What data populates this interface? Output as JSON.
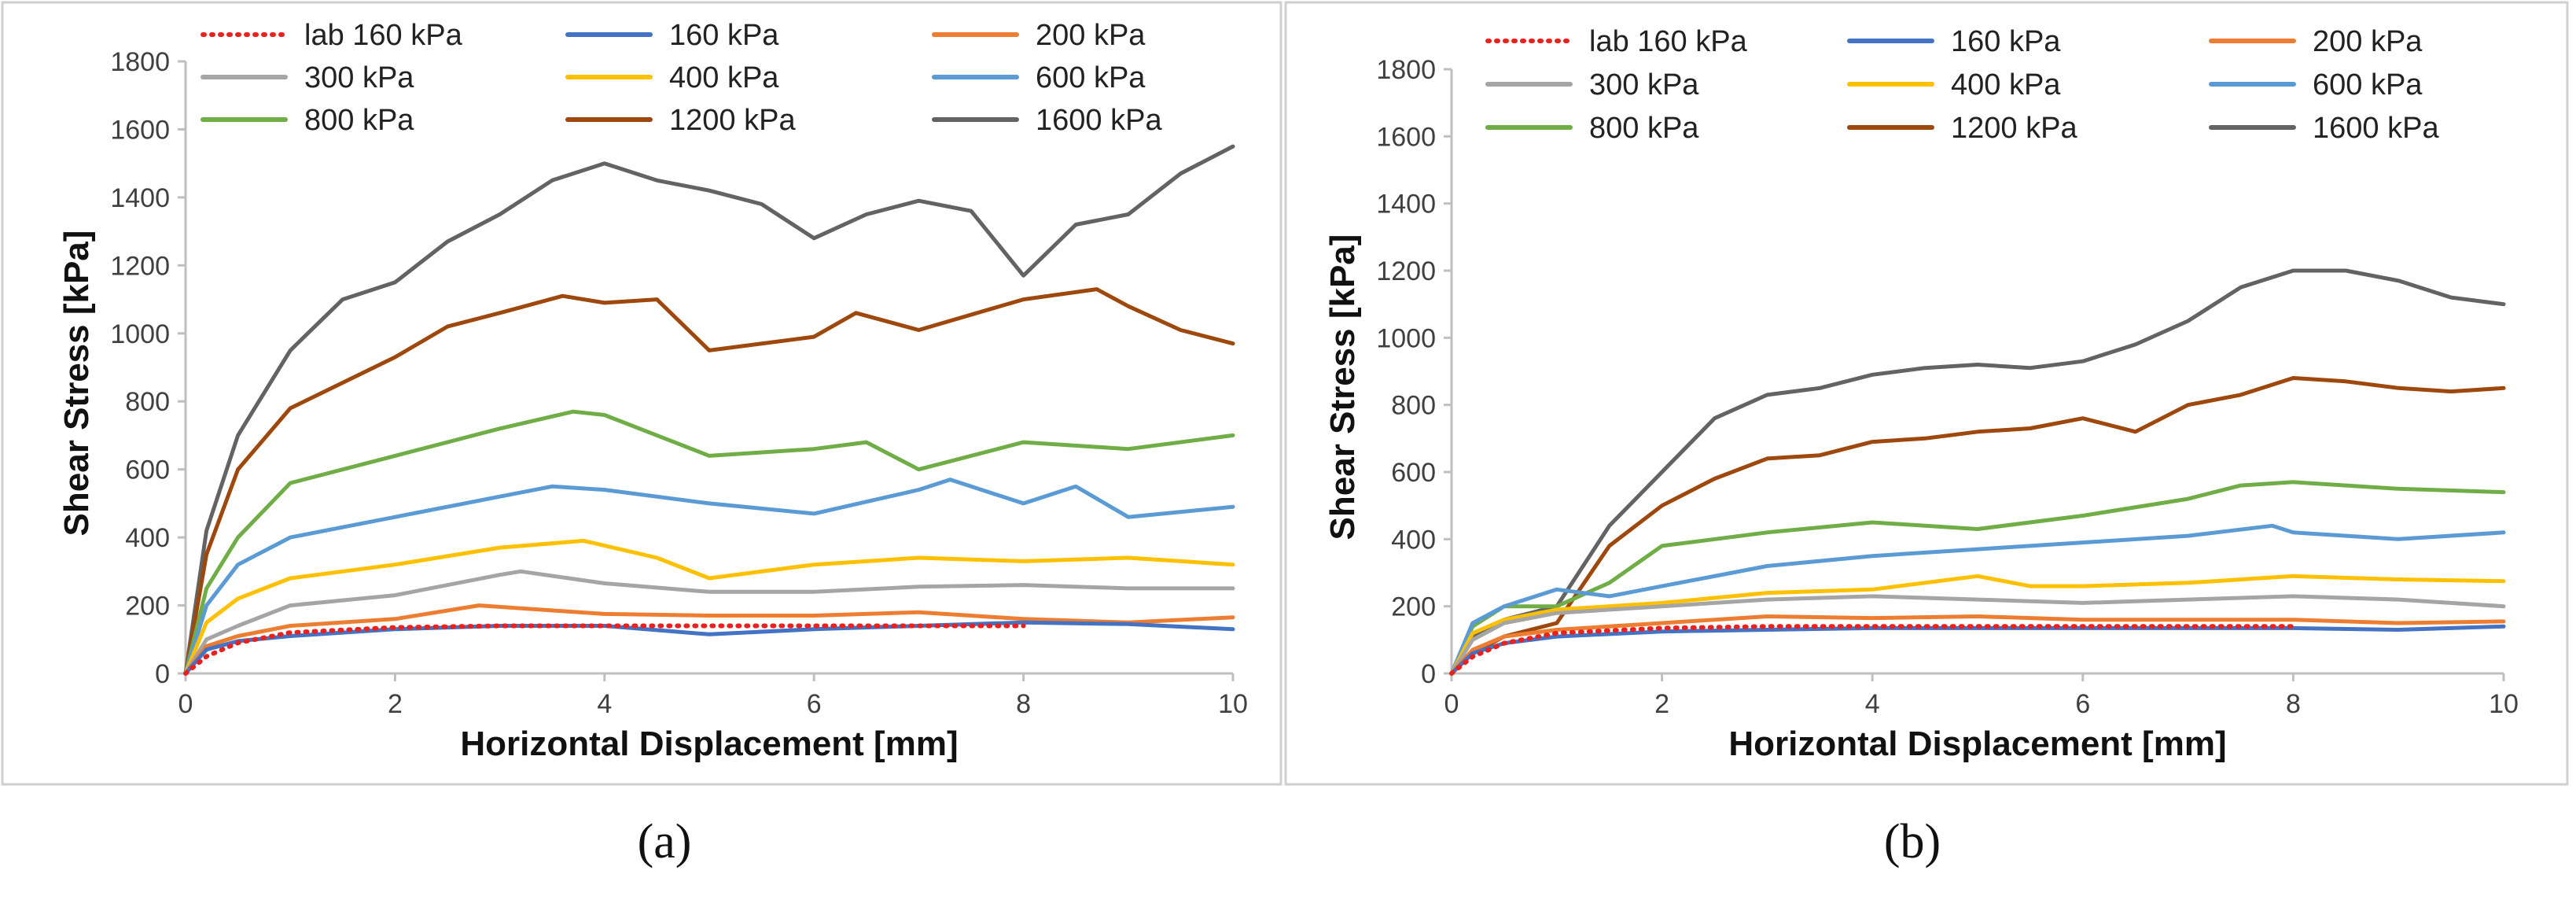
{
  "series_styles": [
    {
      "name": "lab 160 kPa",
      "color": "#e8221f",
      "dashed": true
    },
    {
      "name": "160 kPa",
      "color": "#4472c4",
      "dashed": false
    },
    {
      "name": "200 kPa",
      "color": "#ed7d31",
      "dashed": false
    },
    {
      "name": "300 kPa",
      "color": "#a5a5a5",
      "dashed": false
    },
    {
      "name": "400 kPa",
      "color": "#ffc000",
      "dashed": false
    },
    {
      "name": "600 kPa",
      "color": "#5b9bd5",
      "dashed": false
    },
    {
      "name": "800 kPa",
      "color": "#70ad47",
      "dashed": false
    },
    {
      "name": "1200 kPa",
      "color": "#9e480e",
      "dashed": false
    },
    {
      "name": "1600 kPa",
      "color": "#636363",
      "dashed": false
    }
  ],
  "chart_data": [
    {
      "type": "line",
      "caption": "(a)",
      "title": "",
      "xlabel": "Horizontal Displacement [mm]",
      "ylabel": "Shear Stress [kPa]",
      "xlim": [
        0,
        10
      ],
      "ylim": [
        0,
        1800
      ],
      "xticks": [
        "0",
        "2",
        "4",
        "6",
        "8",
        "10"
      ],
      "yticks": [
        "0",
        "200",
        "400",
        "600",
        "800",
        "1000",
        "1200",
        "1400",
        "1600",
        "1800"
      ],
      "legend": "top, inside, 3 columns",
      "series": [
        {
          "name": "lab 160 kPa",
          "x": [
            0,
            0.2,
            0.5,
            1,
            2,
            3,
            4,
            5,
            6,
            7,
            8
          ],
          "values": [
            0,
            50,
            90,
            120,
            135,
            140,
            140,
            140,
            140,
            140,
            140
          ]
        },
        {
          "name": "160 kPa",
          "x": [
            0,
            0.2,
            0.5,
            1,
            2,
            3,
            4,
            5,
            6,
            7,
            8,
            9,
            10
          ],
          "values": [
            0,
            70,
            95,
            110,
            130,
            140,
            140,
            115,
            130,
            140,
            150,
            145,
            130
          ]
        },
        {
          "name": "200 kPa",
          "x": [
            0,
            0.2,
            0.5,
            1,
            2,
            2.8,
            4,
            5,
            6,
            7,
            8,
            9,
            10
          ],
          "values": [
            0,
            80,
            110,
            140,
            160,
            200,
            175,
            170,
            170,
            180,
            160,
            150,
            165
          ]
        },
        {
          "name": "300 kPa",
          "x": [
            0,
            0.2,
            0.5,
            1,
            2,
            3,
            3.2,
            4,
            5,
            6,
            7,
            8,
            9,
            10
          ],
          "values": [
            0,
            100,
            140,
            200,
            230,
            290,
            300,
            265,
            240,
            240,
            255,
            260,
            250,
            250
          ]
        },
        {
          "name": "400 kPa",
          "x": [
            0,
            0.2,
            0.5,
            1,
            2,
            3,
            3.8,
            4.5,
            5,
            6,
            7,
            8,
            9,
            10
          ],
          "values": [
            0,
            150,
            220,
            280,
            320,
            370,
            390,
            340,
            280,
            320,
            340,
            330,
            340,
            320
          ]
        },
        {
          "name": "600 kPa",
          "x": [
            0,
            0.2,
            0.5,
            1,
            2,
            3,
            3.5,
            4,
            5,
            6,
            7,
            7.3,
            8,
            8.5,
            9,
            10
          ],
          "values": [
            0,
            200,
            320,
            400,
            460,
            520,
            550,
            540,
            500,
            470,
            540,
            570,
            500,
            550,
            460,
            490
          ]
        },
        {
          "name": "800 kPa",
          "x": [
            0,
            0.2,
            0.5,
            1,
            2,
            3,
            3.7,
            4,
            4.5,
            5,
            6,
            6.5,
            7,
            8,
            9,
            10
          ],
          "values": [
            0,
            250,
            400,
            560,
            640,
            720,
            770,
            760,
            700,
            640,
            660,
            680,
            600,
            680,
            660,
            700
          ]
        },
        {
          "name": "1200 kPa",
          "x": [
            0,
            0.2,
            0.5,
            1,
            2,
            2.5,
            3,
            3.6,
            4,
            4.5,
            5,
            6,
            6.4,
            7,
            8,
            8.7,
            9,
            9.5,
            10
          ],
          "values": [
            0,
            350,
            600,
            780,
            930,
            1020,
            1060,
            1110,
            1090,
            1100,
            950,
            990,
            1060,
            1010,
            1100,
            1130,
            1080,
            1010,
            970
          ]
        },
        {
          "name": "1600 kPa",
          "x": [
            0,
            0.2,
            0.5,
            1,
            1.5,
            2,
            2.5,
            3,
            3.5,
            4,
            4.5,
            5,
            5.5,
            6,
            6.5,
            7,
            7.5,
            8,
            8.5,
            9,
            9.5,
            10
          ],
          "values": [
            0,
            420,
            700,
            950,
            1100,
            1150,
            1270,
            1350,
            1450,
            1500,
            1450,
            1420,
            1380,
            1280,
            1350,
            1390,
            1360,
            1170,
            1320,
            1350,
            1470,
            1550
          ]
        }
      ]
    },
    {
      "type": "line",
      "caption": "(b)",
      "title": "",
      "xlabel": "Horizontal Displacement [mm]",
      "ylabel": "Shear Stress [kPa]",
      "xlim": [
        0,
        10
      ],
      "ylim": [
        0,
        1800
      ],
      "xticks": [
        "0",
        "2",
        "4",
        "6",
        "8",
        "10"
      ],
      "yticks": [
        "0",
        "200",
        "400",
        "600",
        "800",
        "1000",
        "1200",
        "1400",
        "1600",
        "1800"
      ],
      "legend": "top, inside, 3 columns",
      "series": [
        {
          "name": "lab 160 kPa",
          "x": [
            0,
            0.2,
            0.5,
            1,
            2,
            3,
            4,
            5,
            6,
            7,
            8
          ],
          "values": [
            0,
            50,
            90,
            120,
            135,
            140,
            140,
            140,
            140,
            140,
            140
          ]
        },
        {
          "name": "160 kPa",
          "x": [
            0,
            0.2,
            0.5,
            1,
            2,
            3,
            4,
            5,
            6,
            7,
            8,
            9,
            10
          ],
          "values": [
            0,
            60,
            90,
            110,
            125,
            130,
            135,
            135,
            135,
            135,
            135,
            130,
            140
          ]
        },
        {
          "name": "200 kPa",
          "x": [
            0,
            0.2,
            0.5,
            1,
            2,
            3,
            4,
            5,
            6,
            7,
            8,
            9,
            10
          ],
          "values": [
            0,
            70,
            110,
            130,
            150,
            170,
            165,
            170,
            160,
            160,
            160,
            150,
            155
          ]
        },
        {
          "name": "300 kPa",
          "x": [
            0,
            0.2,
            0.5,
            1,
            2,
            3,
            4,
            5,
            6,
            7,
            8,
            9,
            10
          ],
          "values": [
            0,
            100,
            150,
            180,
            200,
            220,
            230,
            220,
            210,
            220,
            230,
            220,
            200
          ]
        },
        {
          "name": "400 kPa",
          "x": [
            0,
            0.2,
            0.5,
            1,
            2,
            3,
            4,
            5,
            5.5,
            6,
            7,
            8,
            9,
            10
          ],
          "values": [
            0,
            120,
            160,
            190,
            210,
            240,
            250,
            290,
            260,
            260,
            270,
            290,
            280,
            275
          ]
        },
        {
          "name": "600 kPa",
          "x": [
            0,
            0.2,
            0.5,
            1,
            1.5,
            2,
            3,
            4,
            5,
            6,
            7,
            7.8,
            8,
            9,
            10
          ],
          "values": [
            0,
            150,
            200,
            250,
            230,
            260,
            320,
            350,
            370,
            390,
            410,
            440,
            420,
            400,
            420
          ]
        },
        {
          "name": "800 kPa",
          "x": [
            0,
            0.2,
            0.5,
            1,
            1.5,
            2,
            3,
            4,
            5,
            6,
            7,
            7.5,
            8,
            9,
            10
          ],
          "values": [
            0,
            140,
            200,
            200,
            270,
            380,
            420,
            450,
            430,
            470,
            520,
            560,
            570,
            550,
            540
          ]
        },
        {
          "name": "1200 kPa",
          "x": [
            0,
            0.2,
            0.5,
            1,
            1.5,
            2,
            2.5,
            3,
            3.5,
            4,
            4.5,
            5,
            5.5,
            6,
            6.5,
            7,
            7.5,
            8,
            8.5,
            9,
            9.5,
            10
          ],
          "values": [
            0,
            60,
            110,
            150,
            380,
            500,
            580,
            640,
            650,
            690,
            700,
            720,
            730,
            760,
            720,
            800,
            830,
            880,
            870,
            850,
            840,
            850
          ]
        },
        {
          "name": "1600 kPa",
          "x": [
            0,
            0.2,
            0.5,
            1,
            1.5,
            2,
            2.5,
            3,
            3.5,
            4,
            4.5,
            5,
            5.5,
            6,
            6.5,
            7,
            7.5,
            8,
            8.5,
            9,
            9.5,
            10
          ],
          "values": [
            0,
            110,
            160,
            200,
            440,
            600,
            760,
            830,
            850,
            890,
            910,
            920,
            910,
            930,
            980,
            1050,
            1150,
            1200,
            1200,
            1170,
            1120,
            1100
          ]
        }
      ]
    }
  ]
}
